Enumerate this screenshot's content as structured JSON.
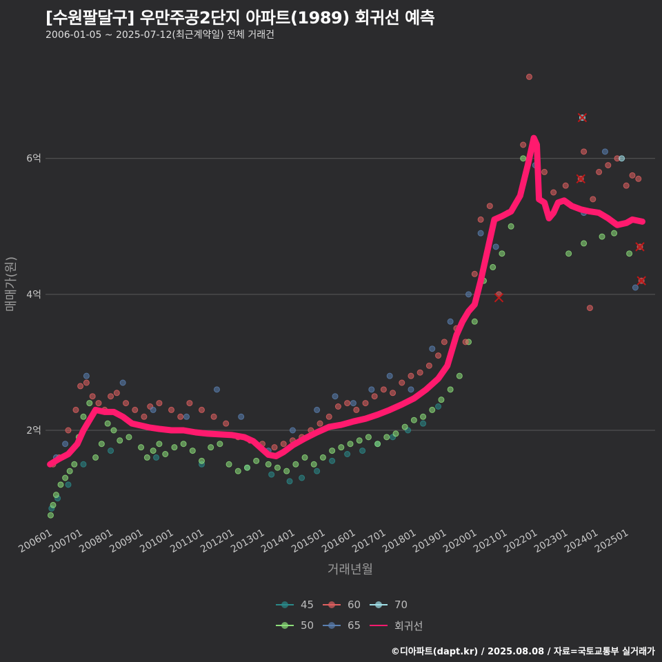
{
  "header": {
    "title": "[수원팔달구] 우만주공2단지 아파트(1989) 회귀선 예측",
    "subtitle": "2006-01-05 ~ 2025-07-12(최근계약일) 전체 거래건"
  },
  "footer": {
    "credit": "©디아파트(dapt.kr) / 2025.08.08 / 자료=국토교통부 실거래가"
  },
  "colors": {
    "background": "#2b2b2d",
    "grid": "#5a5a5a",
    "s45": "#2a8a8a",
    "s50": "#8de07a",
    "s60": "#e06060",
    "s65": "#5a7fb0",
    "s70": "#a0e0e8",
    "regression": "#ff1a6e"
  },
  "chart_data": {
    "type": "scatter",
    "title": "[수원팔달구] 우만주공2단지 아파트(1989) 회귀선 예측",
    "xlabel": "거래년월",
    "ylabel": "매매가(원)",
    "xlim": [
      2005.85,
      2025.95
    ],
    "ylim": [
      0.6,
      7.6
    ],
    "y_unit": "억 KRW",
    "yticks": [
      {
        "value": 2,
        "label": "2억"
      },
      {
        "value": 4,
        "label": "4억"
      },
      {
        "value": 6,
        "label": "6억"
      }
    ],
    "xticks": [
      {
        "value": 2006,
        "label": "200601"
      },
      {
        "value": 2007,
        "label": "200701"
      },
      {
        "value": 2008,
        "label": "200801"
      },
      {
        "value": 2009,
        "label": "200901"
      },
      {
        "value": 2010,
        "label": "201001"
      },
      {
        "value": 2011,
        "label": "201101"
      },
      {
        "value": 2012,
        "label": "201201"
      },
      {
        "value": 2013,
        "label": "201301"
      },
      {
        "value": 2014,
        "label": "201401"
      },
      {
        "value": 2015,
        "label": "201501"
      },
      {
        "value": 2016,
        "label": "201601"
      },
      {
        "value": 2017,
        "label": "201701"
      },
      {
        "value": 2018,
        "label": "201801"
      },
      {
        "value": 2019,
        "label": "201901"
      },
      {
        "value": 2020,
        "label": "202001"
      },
      {
        "value": 2021,
        "label": "202101"
      },
      {
        "value": 2022,
        "label": "202201"
      },
      {
        "value": 2023,
        "label": "202301"
      },
      {
        "value": 2024,
        "label": "202401"
      },
      {
        "value": 2025,
        "label": "202501"
      }
    ],
    "legend": [
      {
        "name": "45",
        "color_key": "s45"
      },
      {
        "name": "60",
        "color_key": "s60"
      },
      {
        "name": "70",
        "color_key": "s70"
      },
      {
        "name": "50",
        "color_key": "s50"
      },
      {
        "name": "65",
        "color_key": "s65"
      },
      {
        "name": "회귀선",
        "color_key": "regression"
      }
    ],
    "series": [
      {
        "name": "45",
        "points": [
          [
            2006.05,
            0.85
          ],
          [
            2006.25,
            1.0
          ],
          [
            2006.6,
            1.2
          ],
          [
            2007.1,
            1.5
          ],
          [
            2008.0,
            1.7
          ],
          [
            2009.5,
            1.6
          ],
          [
            2011.0,
            1.5
          ],
          [
            2012.5,
            1.45
          ],
          [
            2013.3,
            1.35
          ],
          [
            2013.9,
            1.25
          ],
          [
            2014.3,
            1.3
          ],
          [
            2014.8,
            1.4
          ],
          [
            2015.3,
            1.55
          ],
          [
            2015.8,
            1.65
          ],
          [
            2016.3,
            1.7
          ],
          [
            2016.8,
            1.8
          ],
          [
            2017.3,
            1.9
          ],
          [
            2017.8,
            2.0
          ],
          [
            2018.3,
            2.1
          ],
          [
            2018.8,
            2.35
          ]
        ]
      },
      {
        "name": "50",
        "points": [
          [
            2006.02,
            0.75
          ],
          [
            2006.1,
            0.9
          ],
          [
            2006.2,
            1.05
          ],
          [
            2006.35,
            1.2
          ],
          [
            2006.5,
            1.3
          ],
          [
            2006.65,
            1.4
          ],
          [
            2006.8,
            1.5
          ],
          [
            2006.95,
            1.9
          ],
          [
            2007.1,
            2.2
          ],
          [
            2007.3,
            2.4
          ],
          [
            2007.5,
            1.6
          ],
          [
            2007.7,
            1.8
          ],
          [
            2007.9,
            2.1
          ],
          [
            2008.1,
            2.0
          ],
          [
            2008.3,
            1.85
          ],
          [
            2008.6,
            1.9
          ],
          [
            2009.0,
            1.75
          ],
          [
            2009.2,
            1.6
          ],
          [
            2009.4,
            1.7
          ],
          [
            2009.6,
            1.8
          ],
          [
            2009.8,
            1.65
          ],
          [
            2010.1,
            1.75
          ],
          [
            2010.4,
            1.8
          ],
          [
            2010.7,
            1.7
          ],
          [
            2011.0,
            1.55
          ],
          [
            2011.3,
            1.75
          ],
          [
            2011.6,
            1.8
          ],
          [
            2011.9,
            1.5
          ],
          [
            2012.2,
            1.4
          ],
          [
            2012.5,
            1.45
          ],
          [
            2012.8,
            1.55
          ],
          [
            2013.2,
            1.5
          ],
          [
            2013.5,
            1.45
          ],
          [
            2013.8,
            1.4
          ],
          [
            2014.1,
            1.5
          ],
          [
            2014.4,
            1.6
          ],
          [
            2014.7,
            1.5
          ],
          [
            2015.0,
            1.6
          ],
          [
            2015.3,
            1.7
          ],
          [
            2015.6,
            1.75
          ],
          [
            2015.9,
            1.8
          ],
          [
            2016.2,
            1.85
          ],
          [
            2016.5,
            1.9
          ],
          [
            2016.8,
            1.8
          ],
          [
            2017.1,
            1.9
          ],
          [
            2017.4,
            1.95
          ],
          [
            2017.7,
            2.05
          ],
          [
            2018.0,
            2.15
          ],
          [
            2018.3,
            2.2
          ],
          [
            2018.6,
            2.3
          ],
          [
            2018.9,
            2.45
          ],
          [
            2019.2,
            2.6
          ],
          [
            2019.5,
            2.8
          ],
          [
            2019.8,
            3.3
          ],
          [
            2020.0,
            3.6
          ],
          [
            2020.3,
            4.2
          ],
          [
            2020.6,
            4.4
          ],
          [
            2020.9,
            4.6
          ],
          [
            2021.2,
            5.0
          ],
          [
            2021.6,
            6.0
          ],
          [
            2023.1,
            4.6
          ],
          [
            2023.6,
            4.75
          ],
          [
            2024.2,
            4.85
          ],
          [
            2024.6,
            4.9
          ],
          [
            2025.1,
            4.6
          ]
        ]
      },
      {
        "name": "60",
        "points": [
          [
            2006.1,
            1.5
          ],
          [
            2006.3,
            1.6
          ],
          [
            2006.6,
            2.0
          ],
          [
            2006.85,
            2.3
          ],
          [
            2007.0,
            2.65
          ],
          [
            2007.2,
            2.7
          ],
          [
            2007.4,
            2.5
          ],
          [
            2007.6,
            2.4
          ],
          [
            2007.8,
            2.3
          ],
          [
            2008.0,
            2.5
          ],
          [
            2008.2,
            2.55
          ],
          [
            2008.5,
            2.4
          ],
          [
            2008.8,
            2.3
          ],
          [
            2009.1,
            2.2
          ],
          [
            2009.3,
            2.35
          ],
          [
            2009.6,
            2.4
          ],
          [
            2010.0,
            2.3
          ],
          [
            2010.3,
            2.2
          ],
          [
            2010.6,
            2.4
          ],
          [
            2011.0,
            2.3
          ],
          [
            2011.4,
            2.2
          ],
          [
            2011.8,
            2.1
          ],
          [
            2012.2,
            1.9
          ],
          [
            2012.6,
            1.85
          ],
          [
            2013.0,
            1.8
          ],
          [
            2013.4,
            1.75
          ],
          [
            2013.7,
            1.8
          ],
          [
            2014.0,
            1.85
          ],
          [
            2014.3,
            1.9
          ],
          [
            2014.6,
            2.0
          ],
          [
            2014.9,
            2.1
          ],
          [
            2015.2,
            2.2
          ],
          [
            2015.5,
            2.35
          ],
          [
            2015.8,
            2.4
          ],
          [
            2016.1,
            2.3
          ],
          [
            2016.4,
            2.4
          ],
          [
            2016.7,
            2.5
          ],
          [
            2017.0,
            2.6
          ],
          [
            2017.3,
            2.55
          ],
          [
            2017.6,
            2.7
          ],
          [
            2017.9,
            2.8
          ],
          [
            2018.2,
            2.85
          ],
          [
            2018.5,
            2.95
          ],
          [
            2018.8,
            3.1
          ],
          [
            2019.0,
            3.3
          ],
          [
            2019.4,
            3.5
          ],
          [
            2019.7,
            3.3
          ],
          [
            2019.9,
            3.8
          ],
          [
            2020.0,
            4.3
          ],
          [
            2020.2,
            5.1
          ],
          [
            2020.5,
            5.3
          ],
          [
            2020.8,
            4.0
          ],
          [
            2021.1,
            5.2
          ],
          [
            2021.6,
            6.2
          ],
          [
            2021.8,
            7.2
          ],
          [
            2022.3,
            5.8
          ],
          [
            2022.6,
            5.5
          ],
          [
            2023.0,
            5.6
          ],
          [
            2023.5,
            5.7
          ],
          [
            2023.6,
            6.1
          ],
          [
            2023.9,
            5.4
          ],
          [
            2024.1,
            5.8
          ],
          [
            2024.4,
            5.9
          ],
          [
            2024.7,
            6.0
          ],
          [
            2025.0,
            5.6
          ],
          [
            2025.2,
            5.75
          ],
          [
            2025.4,
            5.7
          ],
          [
            2025.5,
            4.2
          ],
          [
            2025.45,
            4.7
          ],
          [
            2023.8,
            3.8
          ]
        ]
      },
      {
        "name": "65",
        "points": [
          [
            2006.2,
            1.6
          ],
          [
            2006.5,
            1.8
          ],
          [
            2007.2,
            2.8
          ],
          [
            2008.4,
            2.7
          ],
          [
            2009.4,
            2.3
          ],
          [
            2010.5,
            2.2
          ],
          [
            2011.5,
            2.6
          ],
          [
            2012.3,
            2.2
          ],
          [
            2013.2,
            1.7
          ],
          [
            2014.0,
            2.0
          ],
          [
            2014.8,
            2.3
          ],
          [
            2015.4,
            2.5
          ],
          [
            2016.0,
            2.4
          ],
          [
            2016.6,
            2.6
          ],
          [
            2017.2,
            2.8
          ],
          [
            2017.9,
            2.6
          ],
          [
            2018.6,
            3.2
          ],
          [
            2019.2,
            3.6
          ],
          [
            2019.8,
            4.0
          ],
          [
            2020.2,
            4.9
          ],
          [
            2020.7,
            4.7
          ],
          [
            2022.0,
            5.9
          ],
          [
            2023.6,
            5.2
          ],
          [
            2024.3,
            6.1
          ],
          [
            2025.3,
            4.1
          ]
        ]
      },
      {
        "name": "70",
        "points": [
          [
            2023.55,
            6.6
          ],
          [
            2024.85,
            6.0
          ]
        ]
      }
    ],
    "regression": {
      "name": "회귀선",
      "points": [
        [
          2006.0,
          1.5
        ],
        [
          2006.3,
          1.58
        ],
        [
          2006.6,
          1.65
        ],
        [
          2006.9,
          1.8
        ],
        [
          2007.1,
          2.0
        ],
        [
          2007.3,
          2.15
        ],
        [
          2007.5,
          2.3
        ],
        [
          2007.8,
          2.27
        ],
        [
          2008.1,
          2.27
        ],
        [
          2008.4,
          2.2
        ],
        [
          2008.7,
          2.1
        ],
        [
          2009.0,
          2.07
        ],
        [
          2009.3,
          2.04
        ],
        [
          2009.6,
          2.02
        ],
        [
          2010.0,
          2.0
        ],
        [
          2010.4,
          2.0
        ],
        [
          2010.8,
          1.97
        ],
        [
          2011.2,
          1.95
        ],
        [
          2011.6,
          1.94
        ],
        [
          2012.0,
          1.93
        ],
        [
          2012.4,
          1.9
        ],
        [
          2012.7,
          1.84
        ],
        [
          2013.0,
          1.72
        ],
        [
          2013.2,
          1.64
        ],
        [
          2013.45,
          1.62
        ],
        [
          2013.7,
          1.68
        ],
        [
          2014.0,
          1.78
        ],
        [
          2014.4,
          1.88
        ],
        [
          2014.8,
          1.97
        ],
        [
          2015.2,
          2.05
        ],
        [
          2015.6,
          2.08
        ],
        [
          2016.0,
          2.13
        ],
        [
          2016.4,
          2.17
        ],
        [
          2016.8,
          2.23
        ],
        [
          2017.2,
          2.3
        ],
        [
          2017.6,
          2.38
        ],
        [
          2018.0,
          2.47
        ],
        [
          2018.4,
          2.6
        ],
        [
          2018.8,
          2.76
        ],
        [
          2019.1,
          2.95
        ],
        [
          2019.4,
          3.4
        ],
        [
          2019.6,
          3.6
        ],
        [
          2019.8,
          3.75
        ],
        [
          2020.0,
          3.85
        ],
        [
          2020.2,
          4.2
        ],
        [
          2020.45,
          4.7
        ],
        [
          2020.65,
          5.1
        ],
        [
          2020.9,
          5.15
        ],
        [
          2021.2,
          5.22
        ],
        [
          2021.5,
          5.45
        ],
        [
          2021.75,
          5.9
        ],
        [
          2021.95,
          6.3
        ],
        [
          2022.05,
          6.2
        ],
        [
          2022.12,
          5.4
        ],
        [
          2022.3,
          5.35
        ],
        [
          2022.45,
          5.12
        ],
        [
          2022.6,
          5.2
        ],
        [
          2022.75,
          5.35
        ],
        [
          2022.95,
          5.38
        ],
        [
          2023.2,
          5.3
        ],
        [
          2023.5,
          5.25
        ],
        [
          2023.8,
          5.22
        ],
        [
          2024.1,
          5.2
        ],
        [
          2024.4,
          5.12
        ],
        [
          2024.7,
          5.02
        ],
        [
          2025.0,
          5.05
        ],
        [
          2025.2,
          5.1
        ],
        [
          2025.53,
          5.07
        ]
      ]
    },
    "outlier_marks": [
      [
        2023.55,
        6.6
      ],
      [
        2023.5,
        5.7
      ],
      [
        2020.8,
        3.95
      ],
      [
        2025.45,
        4.7
      ],
      [
        2025.5,
        4.2
      ]
    ]
  }
}
